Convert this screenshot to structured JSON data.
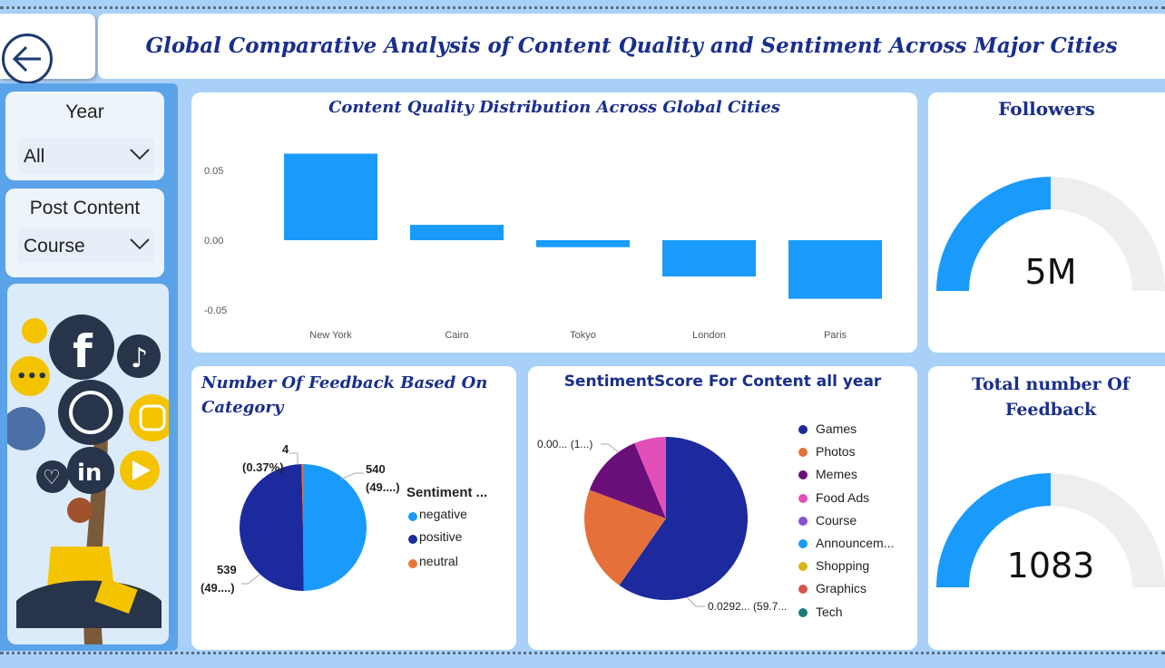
{
  "header": {
    "title": "Global Comparative Analysis of Content Quality and Sentiment Across Major Cities"
  },
  "filters": {
    "year_label": "Year",
    "year_value": "All",
    "content_label": "Post Content",
    "content_value": "Course"
  },
  "quality_chart": {
    "title": "Content Quality Distribution Across Global Cities",
    "chart_data": {
      "type": "bar",
      "categories": [
        "New York",
        "Cairo",
        "Tokyo",
        "London",
        "Paris"
      ],
      "values": [
        0.062,
        0.011,
        -0.005,
        -0.026,
        -0.042
      ],
      "ylim": [
        -0.05,
        0.07
      ],
      "yticks": [
        "0.05",
        "0.00",
        "-0.05"
      ],
      "color": "#1a9bfc"
    }
  },
  "followers": {
    "title": "Followers",
    "value": "5M",
    "fraction": 0.5
  },
  "feedback_category": {
    "title": "Number Of Feedback Based On Category",
    "legend_title": "Sentiment ...",
    "chart_data": {
      "type": "pie",
      "categories": [
        "negative",
        "positive",
        "neutral"
      ],
      "values": [
        540,
        539,
        4
      ],
      "colors": [
        "#1a9bfc",
        "#1c2a9e",
        "#e8763a"
      ],
      "labels": {
        "negative_value": "540",
        "negative_pct": "(49....)",
        "positive_value": "539",
        "positive_pct": "(49....)",
        "neutral_value": "4",
        "neutral_pct": "(0.37%)"
      }
    }
  },
  "sentiment_score": {
    "title": "SentimentScore For Content all year",
    "chart_data": {
      "type": "pie",
      "categories": [
        "Games",
        "Photos",
        "Memes",
        "Food Ads",
        "Course",
        "Announcem...",
        "Shopping",
        "Graphics",
        "Tech"
      ],
      "values": [
        59.7,
        21.0,
        13.0,
        6.3,
        0,
        0,
        0,
        0,
        0
      ],
      "colors": [
        "#1c2a9e",
        "#e5703a",
        "#6a0f7a",
        "#e34fb8",
        "#8a4fd0",
        "#1a9bfc",
        "#d8b51c",
        "#d9534f",
        "#1f7b7b"
      ],
      "label_top": "0.00... (1...)",
      "label_bottom": "0.0292... (59.7..."
    }
  },
  "total_feedback": {
    "title": "Total number Of Feedback",
    "value": "1083",
    "fraction": 0.5
  },
  "icons": {
    "back": "back-arrow-icon",
    "chevron": "chevron-down-icon"
  }
}
